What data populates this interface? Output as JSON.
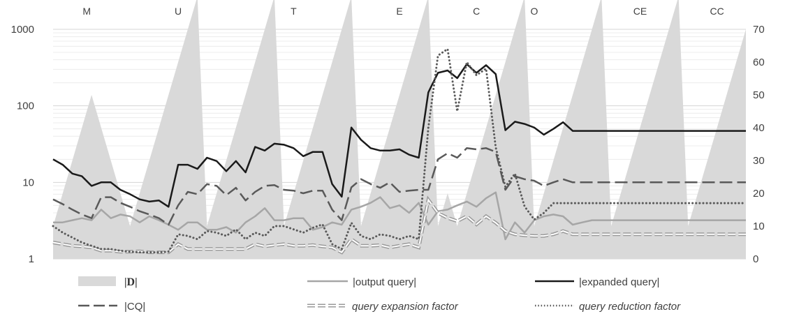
{
  "chart_data": {
    "type": "line",
    "groups": [
      "M",
      "U",
      "T",
      "E",
      "C",
      "O",
      "CE",
      "CC"
    ],
    "y_left": {
      "scale": "log",
      "range": [
        1,
        1000
      ],
      "ticks": [
        "1",
        "10",
        "100",
        "1000"
      ]
    },
    "y_right": {
      "range": [
        0,
        70
      ],
      "ticks": [
        "0",
        "10",
        "20",
        "30",
        "40",
        "50",
        "60",
        "70"
      ]
    },
    "grid": true,
    "legend_position": "bottom",
    "x": [
      1,
      2,
      3,
      4,
      5,
      6,
      7,
      8,
      9,
      10,
      11,
      12,
      13,
      14,
      15,
      16,
      17,
      18,
      19,
      20,
      21,
      22,
      23,
      24,
      25,
      26,
      27,
      28,
      29,
      30,
      31,
      32,
      33,
      34,
      35,
      36,
      37,
      38,
      39,
      40,
      41,
      42,
      43,
      44,
      45,
      46,
      47,
      48,
      49,
      50,
      51,
      52,
      53,
      54,
      55,
      56,
      57,
      58,
      59,
      60,
      61,
      62,
      63,
      64,
      65,
      66,
      67,
      68,
      69,
      70,
      71,
      72,
      73
    ],
    "series": [
      {
        "name": "|D|",
        "axis": "right",
        "style": "area",
        "color": "#d9d9d9",
        "values": [
          10,
          20,
          30,
          40,
          50,
          40,
          30,
          20,
          10,
          20,
          30,
          40,
          50,
          60,
          70,
          80,
          10,
          20,
          30,
          40,
          50,
          60,
          70,
          80,
          10,
          20,
          30,
          40,
          50,
          60,
          70,
          80,
          10,
          20,
          30,
          40,
          50,
          60,
          70,
          80,
          10,
          20,
          10,
          20,
          30,
          40,
          50,
          60,
          70,
          80,
          10,
          20,
          30,
          40,
          50,
          60,
          70,
          80,
          10,
          20,
          30,
          40,
          50,
          60,
          70,
          80,
          10,
          20,
          30,
          40,
          50,
          60,
          70
        ]
      },
      {
        "name": "|output query|",
        "axis": "left",
        "style": "solid",
        "color": "#a6a6a6",
        "values": [
          3,
          3,
          3.2,
          3.4,
          3.2,
          4.4,
          3.4,
          3.8,
          3.6,
          3,
          3.6,
          3.2,
          2.8,
          2.4,
          3,
          3,
          2.4,
          2.4,
          2.6,
          2.2,
          3,
          3.6,
          4.6,
          3.2,
          3.2,
          3.4,
          3.4,
          2.4,
          2.6,
          3,
          2.8,
          4.4,
          4.8,
          5.4,
          6.4,
          4.6,
          5,
          4,
          5.4,
          2.8,
          4.2,
          4.4,
          5,
          5.6,
          4.8,
          6.2,
          7.4,
          1.8,
          3,
          2.2,
          3.2,
          3.6,
          3.8,
          3.6,
          2.8,
          3,
          3.2,
          3.2,
          3.2,
          3.2,
          3.2,
          3.2,
          3.2,
          3.2,
          3.2,
          3.2,
          3.2,
          3.2,
          3.2,
          3.2,
          3.2,
          3.2,
          3.2
        ]
      },
      {
        "name": "|expanded query|",
        "axis": "left",
        "style": "solid",
        "color": "#1a1a1a",
        "values": [
          20,
          17,
          13,
          12,
          9,
          10,
          10,
          8,
          7,
          6,
          5.6,
          5.8,
          4.8,
          17,
          17,
          15,
          21,
          19,
          14,
          19,
          13.5,
          29,
          26,
          32,
          31,
          28,
          22,
          25,
          25,
          9.5,
          6.5,
          52,
          36,
          28,
          26,
          26,
          27,
          23,
          21,
          150,
          270,
          290,
          230,
          350,
          270,
          340,
          260,
          48,
          62,
          58,
          52,
          42,
          50,
          61,
          47,
          47,
          47,
          47,
          47,
          47,
          47,
          47,
          47,
          47,
          47,
          47,
          47,
          47,
          47,
          47,
          47,
          47,
          47
        ]
      },
      {
        "name": "|CQ|",
        "axis": "left",
        "style": "long-dash",
        "color": "#595959",
        "values": [
          6,
          5.2,
          4.4,
          3.8,
          3.4,
          6.4,
          6.4,
          5.4,
          4.8,
          4.2,
          3.8,
          3.4,
          2.8,
          5,
          7.5,
          7,
          9.5,
          9,
          6.8,
          8.5,
          5.8,
          7.5,
          9,
          9.2,
          8,
          7.8,
          7.2,
          7.8,
          7.8,
          4.4,
          3.2,
          8.6,
          11,
          9.5,
          8.5,
          10,
          7.5,
          7.8,
          8,
          8,
          20,
          24,
          21,
          28,
          27,
          28,
          25,
          8,
          12,
          11,
          10.5,
          9,
          10,
          11,
          10,
          10,
          10,
          10,
          10,
          10,
          10,
          10,
          10,
          10,
          10,
          10,
          10,
          10,
          10,
          10,
          10,
          10,
          10
        ]
      },
      {
        "name": "query expansion factor",
        "axis": "right",
        "style": "double-dash",
        "color": "#9a9a9a",
        "values": [
          5,
          4.5,
          4,
          3.8,
          3.5,
          2.5,
          2.5,
          2.2,
          2.2,
          2.3,
          2,
          2,
          2,
          4.5,
          3,
          3,
          3,
          3,
          3,
          3,
          3,
          4.5,
          3.8,
          4.2,
          4.5,
          4,
          4,
          4.2,
          3.8,
          3.5,
          2,
          6,
          4,
          4,
          4.2,
          3.5,
          4,
          4.5,
          3.5,
          18,
          14,
          12.5,
          11.5,
          13,
          10.5,
          13,
          11,
          8.5,
          7.5,
          7.2,
          7,
          7,
          7.5,
          8.5,
          7.5,
          7.5,
          7.5,
          7.5,
          7.5,
          7.5,
          7.5,
          7.5,
          7.5,
          7.5,
          7.5,
          7.5,
          7.5,
          7.5,
          7.5,
          7.5,
          7.5,
          7.5,
          7.5
        ]
      },
      {
        "name": "query reduction factor",
        "axis": "right",
        "style": "dotted",
        "color": "#595959",
        "values": [
          10,
          8,
          6.5,
          5,
          4,
          3,
          3,
          2.5,
          2.2,
          2,
          2,
          2,
          2.2,
          7.5,
          7,
          6,
          8.5,
          8,
          7,
          9,
          6,
          8,
          7,
          10,
          10,
          9,
          8,
          9.5,
          10.5,
          4.5,
          3,
          11,
          7,
          6,
          7.5,
          7,
          6,
          7,
          6,
          40,
          62,
          64,
          45,
          60,
          56,
          58,
          34,
          22,
          26,
          16,
          12,
          14,
          17,
          17,
          17,
          17,
          17,
          17,
          17,
          17,
          17,
          17,
          17,
          17,
          17,
          17,
          17,
          17,
          17,
          17,
          17,
          17,
          17
        ]
      }
    ]
  },
  "legend": {
    "d": "|D|",
    "output": "|output query|",
    "expanded": "|expanded query|",
    "cq": "|CQ|",
    "expansion": "query expansion factor",
    "reduction": "query reduction factor"
  }
}
